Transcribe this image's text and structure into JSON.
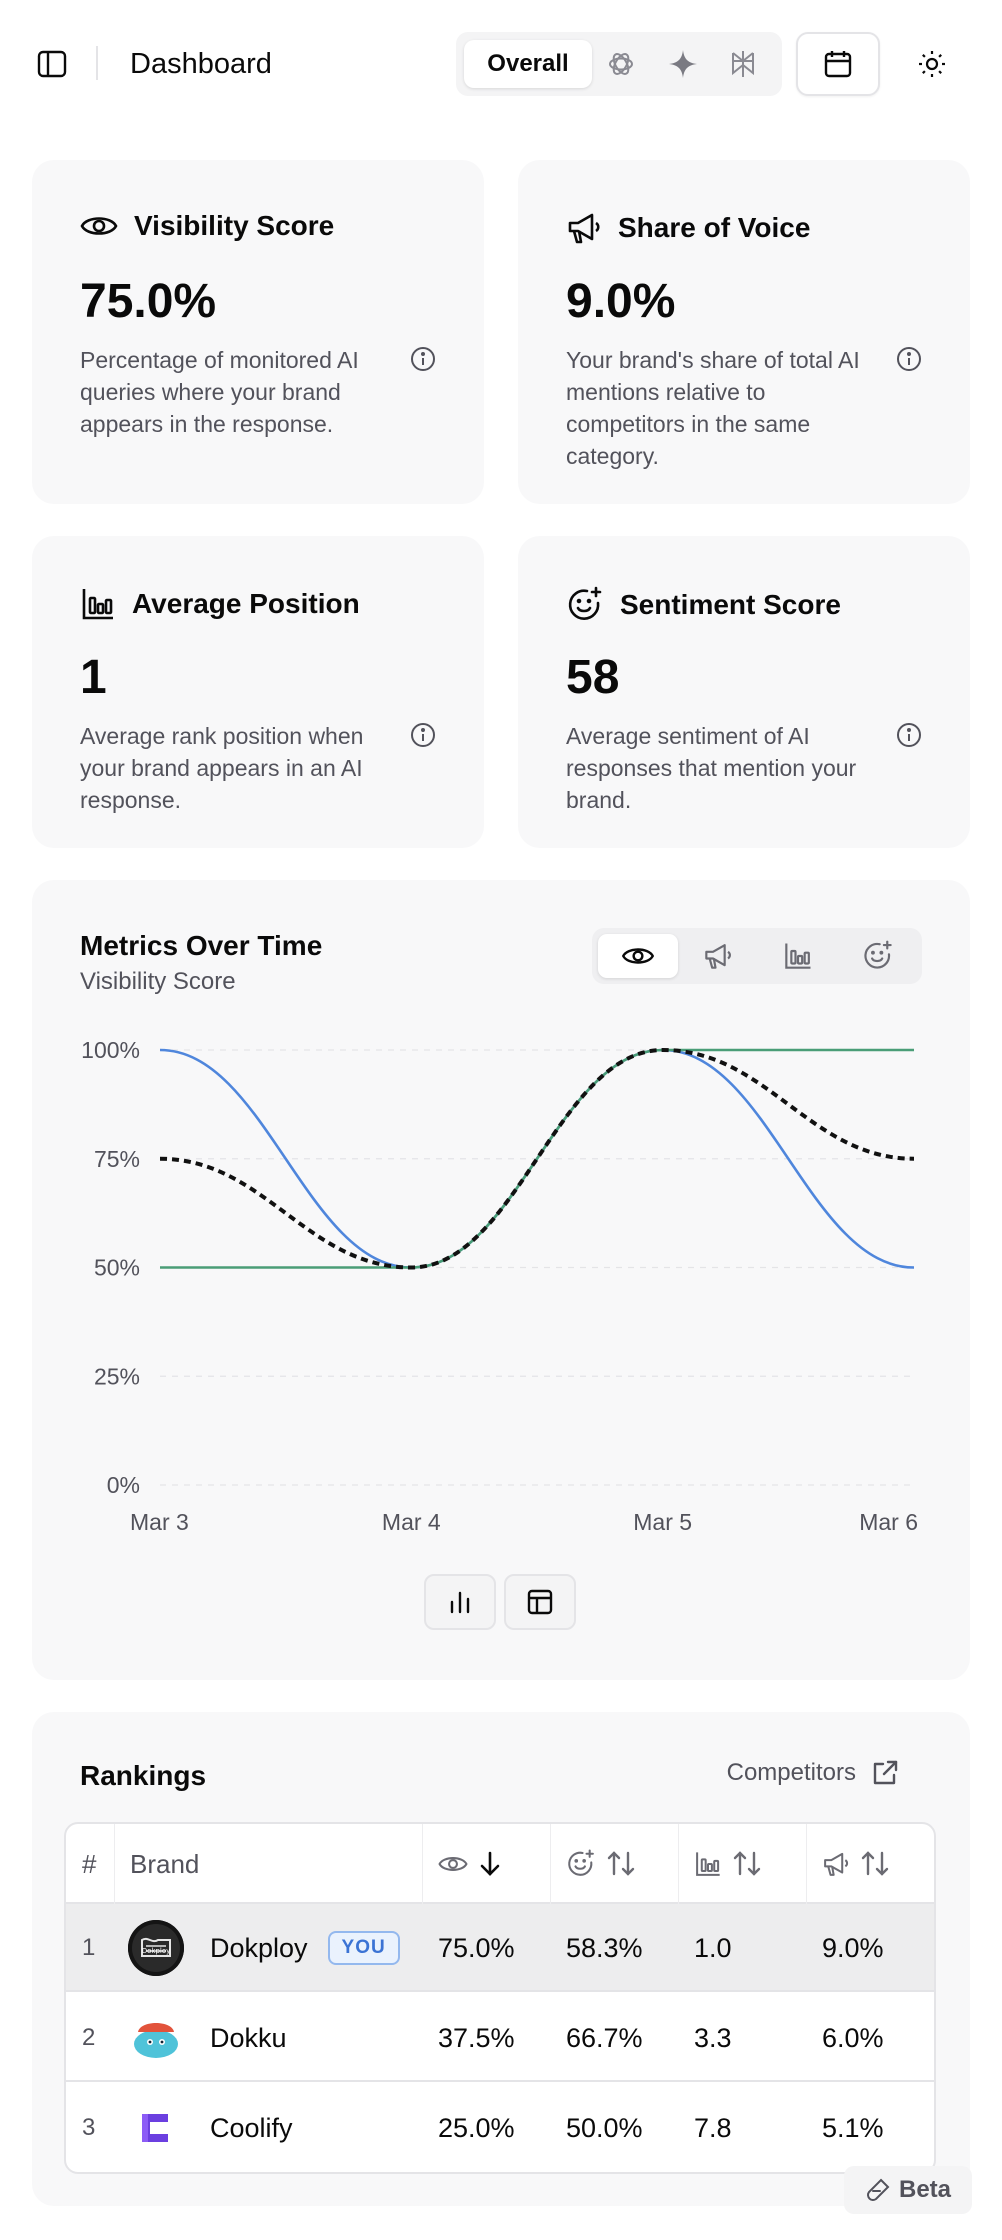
{
  "header": {
    "title": "Dashboard",
    "model_active": "Overall",
    "model_icons": [
      "openai-icon",
      "gemini-sparkle-icon",
      "perplexity-icon"
    ]
  },
  "metrics": [
    {
      "label": "Visibility Score",
      "value": "75.0%",
      "desc": "Percentage of monitored AI queries where your brand appears in the response.",
      "icon": "eye-icon"
    },
    {
      "label": "Share of Voice",
      "value": "9.0%",
      "desc": "Your brand's share of total AI mentions relative to competitors in the same category.",
      "icon": "megaphone-icon"
    },
    {
      "label": "Average Position",
      "value": "1",
      "desc": "Average rank position when your brand appears in an AI response.",
      "icon": "bar-chart-icon"
    },
    {
      "label": "Sentiment Score",
      "value": "58",
      "desc": "Average sentiment of AI responses that mention your brand.",
      "icon": "smile-plus-icon"
    }
  ],
  "chart_section": {
    "title": "Metrics Over Time",
    "subtitle": "Visibility Score"
  },
  "chart_data": {
    "type": "line",
    "title": "Metrics Over Time",
    "subtitle": "Visibility Score",
    "categories": [
      "Mar 3",
      "Mar 4",
      "Mar 5",
      "Mar 6"
    ],
    "y_ticks": [
      "0%",
      "25%",
      "50%",
      "75%",
      "100%"
    ],
    "ylim": [
      0,
      100
    ],
    "grid": true,
    "series": [
      {
        "color": "#4f86dc",
        "style": "solid",
        "values": [
          100,
          50,
          100,
          50
        ]
      },
      {
        "color": "#4a9d77",
        "style": "solid",
        "values": [
          50,
          50,
          100,
          100
        ]
      },
      {
        "color": "#111111",
        "style": "dashed",
        "values": [
          75,
          50,
          100,
          75
        ]
      }
    ]
  },
  "rankings": {
    "title": "Rankings",
    "competitors_label": "Competitors",
    "headers": {
      "rank": "#",
      "brand": "Brand"
    },
    "you_label": "YOU",
    "rows": [
      {
        "rank": "1",
        "brand": "Dokploy",
        "visibility": "75.0%",
        "sentiment": "58.3%",
        "position": "1.0",
        "sov": "9.0%",
        "you": true
      },
      {
        "rank": "2",
        "brand": "Dokku",
        "visibility": "37.5%",
        "sentiment": "66.7%",
        "position": "3.3",
        "sov": "6.0%",
        "you": false
      },
      {
        "rank": "3",
        "brand": "Coolify",
        "visibility": "25.0%",
        "sentiment": "50.0%",
        "position": "7.8",
        "sov": "5.1%",
        "you": false
      }
    ]
  },
  "logos": {
    "dokploy_text": "Dokploy"
  },
  "beta_label": "Beta"
}
